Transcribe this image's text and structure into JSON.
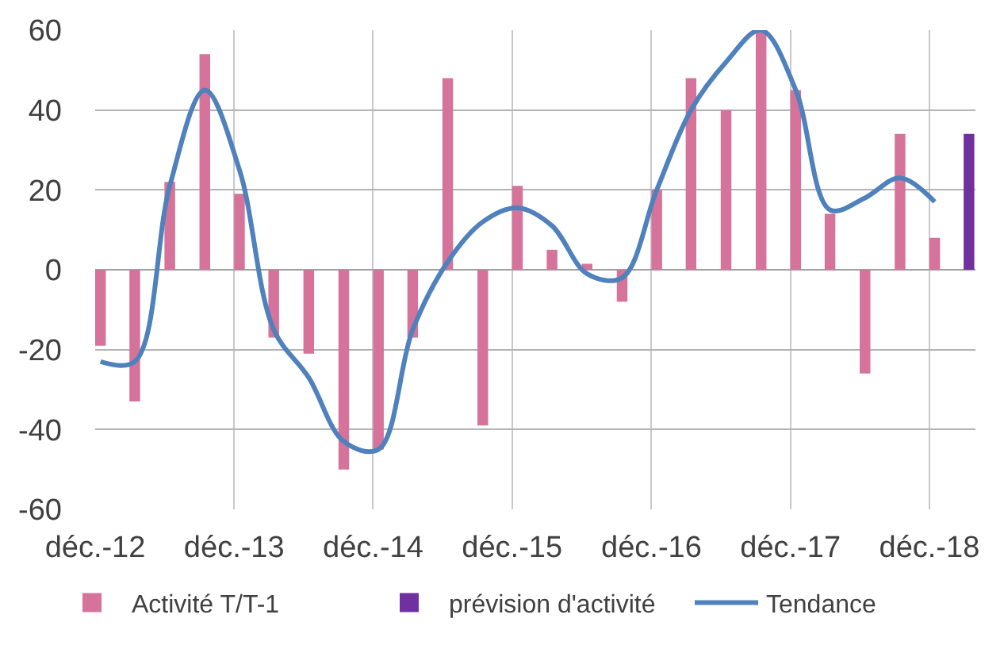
{
  "chart_data": {
    "type": "bar",
    "x": [
      "2012-12-15",
      "2013-03-15",
      "2013-06-15",
      "2013-09-15",
      "2013-12-15",
      "2014-03-15",
      "2014-06-15",
      "2014-09-15",
      "2014-12-15",
      "2015-03-15",
      "2015-06-15",
      "2015-09-15",
      "2015-12-15",
      "2016-03-15",
      "2016-06-15",
      "2016-09-15",
      "2016-12-15",
      "2017-03-15",
      "2017-06-15",
      "2017-09-15",
      "2017-12-15",
      "2018-03-15",
      "2018-06-15",
      "2018-09-15",
      "2018-12-15"
    ],
    "xlim": [
      "2012-12",
      "2019-04"
    ],
    "xticks": [
      {
        "value": "2012-12",
        "label": "déc.-12"
      },
      {
        "value": "2013-12",
        "label": "déc.-13"
      },
      {
        "value": "2014-12",
        "label": "déc.-14"
      },
      {
        "value": "2015-12",
        "label": "déc.-15"
      },
      {
        "value": "2016-12",
        "label": "déc.-16"
      },
      {
        "value": "2017-12",
        "label": "déc.-17"
      },
      {
        "value": "2018-12",
        "label": "déc.-18"
      }
    ],
    "ylim": [
      -60,
      60
    ],
    "yticks": [
      -60,
      -40,
      -20,
      0,
      20,
      40,
      60
    ],
    "grid": true,
    "legend": "bottom",
    "series": [
      {
        "name": "Activité T/T-1",
        "color": "#d5739a",
        "values": [
          -19,
          -33,
          22,
          54,
          19,
          -17,
          -21,
          -50,
          -45,
          -17,
          48,
          -39,
          21,
          5,
          1.5,
          -8,
          20,
          48,
          40,
          60,
          45,
          14,
          -26,
          34,
          8
        ]
      },
      {
        "name": "prévision d'activité",
        "color": "#7030a0",
        "x": [
          "2019-03-15"
        ],
        "values": [
          34
        ]
      },
      {
        "name": "Tendance",
        "type": "line",
        "color": "#4f81bd",
        "values": [
          -23,
          -23,
          21,
          45,
          25,
          -15,
          -27,
          -43,
          -45,
          -15,
          2,
          12,
          15.5,
          11,
          -1,
          -2,
          20,
          40,
          52,
          60,
          45,
          15,
          18,
          23,
          17
        ]
      }
    ]
  }
}
